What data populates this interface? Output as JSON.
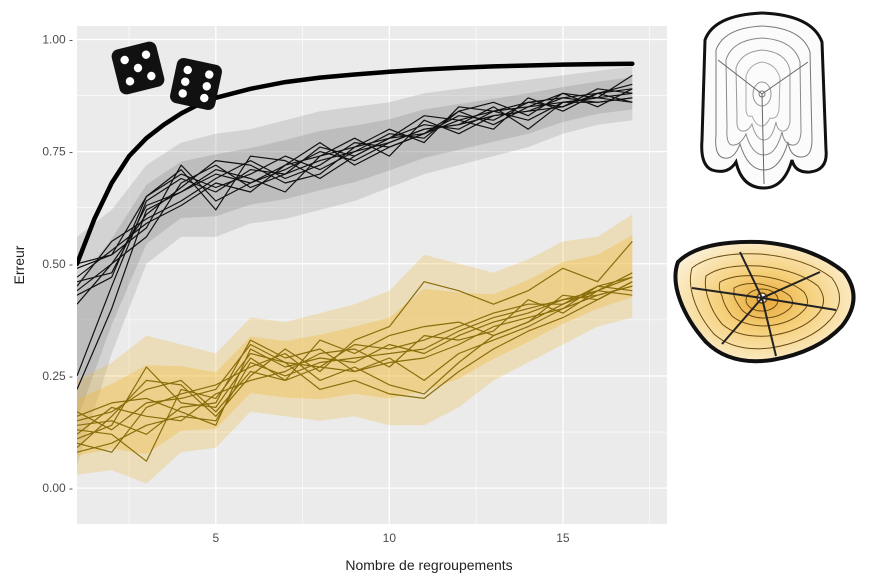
{
  "colors": {
    "panel_bg": "#ebebeb",
    "grid": "#ffffff",
    "random_band": "#8c8c8c",
    "random_line": "#111111",
    "bound_line": "#000000",
    "spatial_band": "#f0b429",
    "spatial_line": "#8a6d0b"
  },
  "icons": [
    "dice-icon",
    "tree-trunk-rings-icon",
    "tree-cross-section-icon"
  ],
  "chart_data": {
    "type": "line",
    "title": "",
    "xlabel": "Nombre de regroupements",
    "ylabel": "Erreur",
    "xlim": [
      1,
      18
    ],
    "ylim": [
      -0.08,
      1.03
    ],
    "x_ticks": [
      5,
      10,
      15
    ],
    "y_ticks": [
      0.0,
      0.25,
      0.5,
      0.75,
      1.0
    ],
    "x_tick_labels": [
      "5",
      "10",
      "15"
    ],
    "y_tick_labels": [
      "0.00 -",
      "0.25 -",
      "0.50 -",
      "0.75 -",
      "1.00 -"
    ],
    "grid": true,
    "x": [
      1,
      2,
      3,
      4,
      5,
      6,
      7,
      8,
      9,
      10,
      11,
      12,
      13,
      14,
      15,
      16,
      17
    ],
    "bound": {
      "x": [
        1,
        1.5,
        2,
        2.5,
        3,
        3.5,
        4,
        4.5,
        5,
        6,
        7,
        8,
        9,
        10,
        11,
        12,
        13,
        14,
        15,
        16,
        17
      ],
      "values": [
        0.5,
        0.6,
        0.68,
        0.74,
        0.78,
        0.81,
        0.835,
        0.855,
        0.87,
        0.89,
        0.905,
        0.915,
        0.922,
        0.928,
        0.933,
        0.937,
        0.94,
        0.942,
        0.944,
        0.945,
        0.946
      ]
    },
    "random_series": [
      [
        0.22,
        0.4,
        0.62,
        0.66,
        0.7,
        0.68,
        0.72,
        0.74,
        0.76,
        0.78,
        0.79,
        0.82,
        0.84,
        0.85,
        0.86,
        0.87,
        0.88
      ],
      [
        0.25,
        0.45,
        0.64,
        0.69,
        0.66,
        0.71,
        0.7,
        0.73,
        0.75,
        0.77,
        0.8,
        0.81,
        0.83,
        0.84,
        0.87,
        0.86,
        0.87
      ],
      [
        0.41,
        0.5,
        0.56,
        0.68,
        0.72,
        0.67,
        0.7,
        0.76,
        0.74,
        0.78,
        0.81,
        0.8,
        0.84,
        0.86,
        0.85,
        0.88,
        0.89
      ],
      [
        0.45,
        0.55,
        0.6,
        0.64,
        0.69,
        0.73,
        0.69,
        0.72,
        0.77,
        0.76,
        0.79,
        0.83,
        0.82,
        0.86,
        0.87,
        0.88,
        0.9
      ],
      [
        0.49,
        0.52,
        0.65,
        0.7,
        0.67,
        0.7,
        0.74,
        0.71,
        0.75,
        0.79,
        0.78,
        0.84,
        0.81,
        0.85,
        0.88,
        0.87,
        0.92
      ],
      [
        0.5,
        0.52,
        0.58,
        0.72,
        0.64,
        0.68,
        0.71,
        0.75,
        0.73,
        0.77,
        0.8,
        0.81,
        0.85,
        0.8,
        0.86,
        0.87,
        0.86
      ],
      [
        0.46,
        0.48,
        0.63,
        0.66,
        0.71,
        0.69,
        0.66,
        0.74,
        0.78,
        0.74,
        0.82,
        0.79,
        0.83,
        0.84,
        0.85,
        0.89,
        0.88
      ],
      [
        0.44,
        0.5,
        0.61,
        0.67,
        0.73,
        0.72,
        0.68,
        0.7,
        0.76,
        0.8,
        0.77,
        0.85,
        0.84,
        0.82,
        0.86,
        0.86,
        0.87
      ],
      [
        0.43,
        0.47,
        0.65,
        0.71,
        0.62,
        0.74,
        0.73,
        0.69,
        0.74,
        0.78,
        0.83,
        0.82,
        0.8,
        0.87,
        0.84,
        0.88,
        0.86
      ],
      [
        0.47,
        0.53,
        0.59,
        0.63,
        0.68,
        0.66,
        0.72,
        0.77,
        0.72,
        0.76,
        0.79,
        0.84,
        0.86,
        0.83,
        0.88,
        0.85,
        0.89
      ]
    ],
    "spatial_series": [
      [
        0.15,
        0.17,
        0.22,
        0.24,
        0.17,
        0.26,
        0.24,
        0.27,
        0.26,
        0.28,
        0.29,
        0.32,
        0.36,
        0.38,
        0.4,
        0.43,
        0.45
      ],
      [
        0.13,
        0.12,
        0.06,
        0.22,
        0.2,
        0.3,
        0.28,
        0.22,
        0.24,
        0.21,
        0.2,
        0.26,
        0.31,
        0.35,
        0.38,
        0.42,
        0.46
      ],
      [
        0.08,
        0.1,
        0.14,
        0.16,
        0.15,
        0.28,
        0.25,
        0.28,
        0.29,
        0.3,
        0.31,
        0.35,
        0.38,
        0.4,
        0.42,
        0.44,
        0.47
      ],
      [
        0.1,
        0.08,
        0.18,
        0.21,
        0.23,
        0.27,
        0.3,
        0.24,
        0.27,
        0.23,
        0.21,
        0.28,
        0.34,
        0.37,
        0.41,
        0.44,
        0.43
      ],
      [
        0.16,
        0.19,
        0.2,
        0.17,
        0.14,
        0.31,
        0.27,
        0.29,
        0.28,
        0.32,
        0.3,
        0.34,
        0.37,
        0.39,
        0.42,
        0.43,
        0.45
      ],
      [
        0.14,
        0.15,
        0.12,
        0.18,
        0.19,
        0.33,
        0.29,
        0.31,
        0.26,
        0.29,
        0.24,
        0.3,
        0.33,
        0.36,
        0.4,
        0.45,
        0.44
      ],
      [
        0.12,
        0.18,
        0.16,
        0.15,
        0.21,
        0.24,
        0.26,
        0.3,
        0.31,
        0.27,
        0.34,
        0.33,
        0.35,
        0.42,
        0.39,
        0.44,
        0.48
      ],
      [
        0.11,
        0.14,
        0.27,
        0.19,
        0.18,
        0.29,
        0.24,
        0.33,
        0.3,
        0.34,
        0.36,
        0.37,
        0.34,
        0.37,
        0.43,
        0.42,
        0.46
      ],
      [
        0.09,
        0.16,
        0.24,
        0.23,
        0.16,
        0.25,
        0.31,
        0.26,
        0.33,
        0.36,
        0.46,
        0.44,
        0.41,
        0.44,
        0.49,
        0.46,
        0.55
      ],
      [
        0.17,
        0.13,
        0.19,
        0.2,
        0.22,
        0.32,
        0.28,
        0.27,
        0.32,
        0.31,
        0.33,
        0.36,
        0.39,
        0.41,
        0.41,
        0.45,
        0.47
      ]
    ],
    "random_band": {
      "lower": [
        0.05,
        0.3,
        0.5,
        0.56,
        0.56,
        0.59,
        0.6,
        0.62,
        0.64,
        0.67,
        0.7,
        0.72,
        0.74,
        0.76,
        0.79,
        0.81,
        0.82
      ],
      "upper": [
        0.56,
        0.62,
        0.72,
        0.77,
        0.79,
        0.8,
        0.82,
        0.84,
        0.85,
        0.86,
        0.88,
        0.89,
        0.9,
        0.91,
        0.92,
        0.93,
        0.94
      ]
    },
    "spatial_band": {
      "lower": [
        0.03,
        0.04,
        0.01,
        0.08,
        0.09,
        0.17,
        0.16,
        0.15,
        0.16,
        0.14,
        0.14,
        0.18,
        0.24,
        0.28,
        0.32,
        0.36,
        0.38
      ],
      "upper": [
        0.24,
        0.28,
        0.34,
        0.32,
        0.3,
        0.38,
        0.37,
        0.39,
        0.41,
        0.44,
        0.52,
        0.5,
        0.48,
        0.51,
        0.55,
        0.56,
        0.61
      ]
    }
  }
}
